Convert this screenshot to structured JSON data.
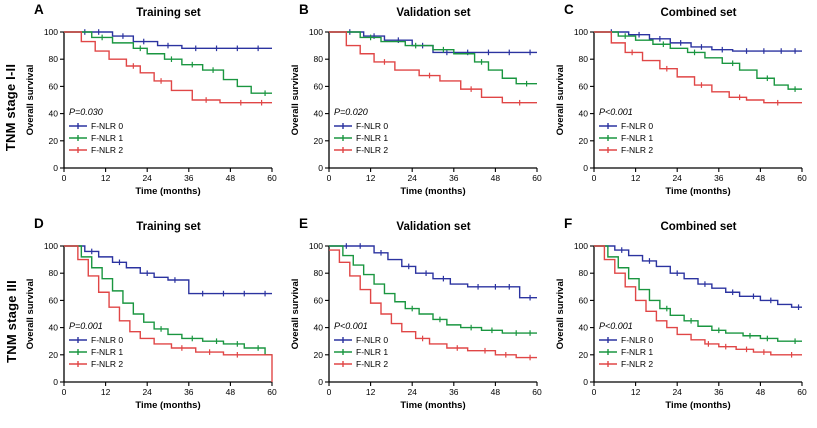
{
  "figure": {
    "row_labels": [
      "TNM stage I-II",
      "TNM stage III"
    ]
  },
  "chart_data": [
    {
      "type": "line",
      "panel": "A",
      "row": "TNM stage I-II",
      "title": "Training set",
      "xlabel": "Time (months)",
      "ylabel": "Overall survival",
      "xlim": [
        0,
        60
      ],
      "ylim": [
        0,
        100
      ],
      "xticks": [
        0,
        12,
        24,
        36,
        48,
        60
      ],
      "yticks": [
        0,
        20,
        40,
        60,
        80,
        100
      ],
      "grid": false,
      "legend_position": "lower-left",
      "annotation": "P=0.030",
      "series": [
        {
          "name": "F-NLR 0",
          "color": "#2b33a0",
          "step_x": [
            0,
            14,
            20,
            27,
            34
          ],
          "step_y": [
            100,
            97,
            93,
            90,
            88
          ],
          "censor_x": [
            6,
            10,
            17,
            23,
            30,
            38,
            44,
            50,
            56
          ]
        },
        {
          "name": "F-NLR 1",
          "color": "#1a9640",
          "step_x": [
            0,
            8,
            14,
            20,
            24,
            29,
            34,
            40,
            46,
            50,
            54
          ],
          "step_y": [
            100,
            96,
            92,
            88,
            84,
            80,
            76,
            72,
            65,
            60,
            55
          ],
          "censor_x": [
            11,
            22,
            31,
            37,
            43,
            58
          ]
        },
        {
          "name": "F-NLR 2",
          "color": "#e04646",
          "step_x": [
            0,
            5,
            9,
            13,
            18,
            22,
            26,
            31,
            37,
            45
          ],
          "step_y": [
            100,
            93,
            86,
            80,
            75,
            70,
            64,
            57,
            50,
            48
          ],
          "censor_x": [
            20,
            28,
            41,
            51,
            57
          ]
        }
      ]
    },
    {
      "type": "line",
      "panel": "B",
      "row": "TNM stage I-II",
      "title": "Validation set",
      "xlabel": "Time (months)",
      "ylabel": "Overall survival",
      "xlim": [
        0,
        60
      ],
      "ylim": [
        0,
        100
      ],
      "xticks": [
        0,
        12,
        24,
        36,
        48,
        60
      ],
      "yticks": [
        0,
        20,
        40,
        60,
        80,
        100
      ],
      "grid": false,
      "legend_position": "lower-left",
      "annotation": "P=0.020",
      "series": [
        {
          "name": "F-NLR 0",
          "color": "#2b33a0",
          "step_x": [
            0,
            10,
            16,
            24,
            30
          ],
          "step_y": [
            100,
            97,
            94,
            90,
            85
          ],
          "censor_x": [
            6,
            13,
            20,
            27,
            34,
            40,
            46,
            52,
            58
          ]
        },
        {
          "name": "F-NLR 1",
          "color": "#1a9640",
          "step_x": [
            0,
            9,
            15,
            22,
            30,
            36,
            42,
            46,
            50,
            54
          ],
          "step_y": [
            100,
            96,
            93,
            90,
            87,
            84,
            78,
            72,
            66,
            62
          ],
          "censor_x": [
            12,
            25,
            33,
            44,
            57
          ]
        },
        {
          "name": "F-NLR 2",
          "color": "#e04646",
          "step_x": [
            0,
            5,
            9,
            13,
            19,
            26,
            32,
            38,
            44,
            50
          ],
          "step_y": [
            100,
            90,
            84,
            78,
            72,
            68,
            64,
            58,
            52,
            48
          ],
          "censor_x": [
            16,
            29,
            41,
            55
          ]
        }
      ]
    },
    {
      "type": "line",
      "panel": "C",
      "row": "TNM stage I-II",
      "title": "Combined set",
      "xlabel": "Time (months)",
      "ylabel": "Overall survival",
      "xlim": [
        0,
        60
      ],
      "ylim": [
        0,
        100
      ],
      "xticks": [
        0,
        12,
        24,
        36,
        48,
        60
      ],
      "yticks": [
        0,
        20,
        40,
        60,
        80,
        100
      ],
      "grid": false,
      "legend_position": "lower-left",
      "annotation": "P<0.001",
      "series": [
        {
          "name": "F-NLR 0",
          "color": "#2b33a0",
          "step_x": [
            0,
            10,
            16,
            22,
            28,
            34,
            40
          ],
          "step_y": [
            100,
            98,
            95,
            92,
            89,
            87,
            86
          ],
          "censor_x": [
            5,
            13,
            19,
            25,
            31,
            37,
            44,
            49,
            54,
            58
          ]
        },
        {
          "name": "F-NLR 1",
          "color": "#1a9640",
          "step_x": [
            0,
            7,
            12,
            17,
            22,
            27,
            32,
            37,
            42,
            47,
            52,
            56
          ],
          "step_y": [
            100,
            97,
            94,
            91,
            88,
            85,
            81,
            77,
            72,
            66,
            61,
            58
          ],
          "censor_x": [
            9,
            20,
            29,
            40,
            50,
            58
          ]
        },
        {
          "name": "F-NLR 2",
          "color": "#e04646",
          "step_x": [
            0,
            5,
            9,
            14,
            19,
            24,
            29,
            34,
            39,
            44,
            49
          ],
          "step_y": [
            100,
            92,
            85,
            79,
            73,
            67,
            61,
            56,
            52,
            50,
            48
          ],
          "censor_x": [
            11,
            21,
            31,
            42,
            53
          ]
        }
      ]
    },
    {
      "type": "line",
      "panel": "D",
      "row": "TNM stage III",
      "title": "Training set",
      "xlabel": "Time (months)",
      "ylabel": "Overall survival",
      "xlim": [
        0,
        60
      ],
      "ylim": [
        0,
        100
      ],
      "xticks": [
        0,
        12,
        24,
        36,
        48,
        60
      ],
      "yticks": [
        0,
        20,
        40,
        60,
        80,
        100
      ],
      "grid": false,
      "legend_position": "lower-left",
      "annotation": "P=0.001",
      "series": [
        {
          "name": "F-NLR 0",
          "color": "#2b33a0",
          "step_x": [
            0,
            6,
            10,
            14,
            18,
            22,
            26,
            30,
            36
          ],
          "step_y": [
            100,
            96,
            92,
            88,
            84,
            80,
            77,
            75,
            65
          ],
          "censor_x": [
            8,
            16,
            24,
            32,
            40,
            46,
            52,
            58
          ]
        },
        {
          "name": "F-NLR 1",
          "color": "#1a9640",
          "step_x": [
            0,
            5,
            8,
            11,
            14,
            17,
            20,
            23,
            26,
            30,
            34,
            40,
            46,
            52,
            58
          ],
          "step_y": [
            100,
            92,
            84,
            76,
            67,
            58,
            50,
            44,
            39,
            35,
            32,
            30,
            28,
            25,
            20
          ],
          "censor_x": [
            28,
            37,
            44,
            50,
            56
          ]
        },
        {
          "name": "F-NLR 2",
          "color": "#e04646",
          "step_x": [
            0,
            4,
            7,
            10,
            13,
            16,
            19,
            22,
            26,
            31,
            38,
            46,
            60
          ],
          "step_y": [
            100,
            90,
            78,
            66,
            55,
            45,
            37,
            32,
            28,
            25,
            22,
            20,
            0
          ],
          "censor_x": [
            34,
            42,
            50
          ]
        }
      ]
    },
    {
      "type": "line",
      "panel": "E",
      "row": "TNM stage III",
      "title": "Validation set",
      "xlabel": "Time (months)",
      "ylabel": "Overall survival",
      "xlim": [
        0,
        60
      ],
      "ylim": [
        0,
        100
      ],
      "xticks": [
        0,
        12,
        24,
        36,
        48,
        60
      ],
      "yticks": [
        0,
        20,
        40,
        60,
        80,
        100
      ],
      "grid": false,
      "legend_position": "lower-left",
      "annotation": "P<0.001",
      "series": [
        {
          "name": "F-NLR 0",
          "color": "#2b33a0",
          "step_x": [
            0,
            13,
            17,
            21,
            25,
            30,
            35,
            40,
            55
          ],
          "step_y": [
            100,
            95,
            90,
            85,
            80,
            76,
            72,
            70,
            62
          ],
          "censor_x": [
            5,
            9,
            15,
            23,
            28,
            33,
            43,
            48,
            52,
            58
          ]
        },
        {
          "name": "F-NLR 1",
          "color": "#1a9640",
          "step_x": [
            0,
            4,
            7,
            10,
            13,
            16,
            19,
            22,
            26,
            30,
            34,
            38,
            44,
            50
          ],
          "step_y": [
            100,
            93,
            86,
            79,
            72,
            65,
            59,
            54,
            50,
            46,
            42,
            40,
            38,
            36
          ],
          "censor_x": [
            24,
            32,
            41,
            47,
            54,
            58
          ]
        },
        {
          "name": "F-NLR 2",
          "color": "#e04646",
          "step_x": [
            0,
            3,
            6,
            9,
            12,
            15,
            18,
            21,
            25,
            29,
            34,
            40,
            48,
            54
          ],
          "step_y": [
            97,
            88,
            78,
            68,
            58,
            50,
            43,
            37,
            32,
            28,
            25,
            23,
            20,
            18
          ],
          "censor_x": [
            27,
            37,
            45,
            51,
            58
          ]
        }
      ]
    },
    {
      "type": "line",
      "panel": "F",
      "row": "TNM stage III",
      "title": "Combined set",
      "xlabel": "Time (months)",
      "ylabel": "Overall survival",
      "xlim": [
        0,
        60
      ],
      "ylim": [
        0,
        100
      ],
      "xticks": [
        0,
        12,
        24,
        36,
        48,
        60
      ],
      "yticks": [
        0,
        20,
        40,
        60,
        80,
        100
      ],
      "grid": false,
      "legend_position": "lower-left",
      "annotation": "P<0.001",
      "series": [
        {
          "name": "F-NLR 0",
          "color": "#2b33a0",
          "step_x": [
            0,
            6,
            10,
            14,
            18,
            22,
            26,
            30,
            34,
            38,
            42,
            48,
            53,
            57
          ],
          "step_y": [
            100,
            97,
            93,
            89,
            85,
            80,
            76,
            72,
            69,
            66,
            63,
            60,
            57,
            55
          ],
          "censor_x": [
            8,
            16,
            24,
            32,
            40,
            46,
            51,
            59
          ]
        },
        {
          "name": "F-NLR 1",
          "color": "#1a9640",
          "step_x": [
            0,
            4,
            7,
            10,
            13,
            16,
            19,
            22,
            26,
            30,
            34,
            38,
            43,
            48,
            53
          ],
          "step_y": [
            100,
            92,
            84,
            76,
            68,
            60,
            54,
            49,
            45,
            41,
            38,
            36,
            34,
            32,
            30
          ],
          "censor_x": [
            21,
            28,
            36,
            45,
            50,
            58
          ]
        },
        {
          "name": "F-NLR 2",
          "color": "#e04646",
          "step_x": [
            0,
            3,
            6,
            9,
            12,
            15,
            18,
            21,
            24,
            28,
            32,
            36,
            41,
            46,
            51
          ],
          "step_y": [
            100,
            90,
            80,
            70,
            60,
            52,
            45,
            40,
            35,
            31,
            28,
            26,
            24,
            22,
            20
          ],
          "censor_x": [
            33,
            38,
            44,
            49,
            57
          ]
        }
      ]
    }
  ]
}
